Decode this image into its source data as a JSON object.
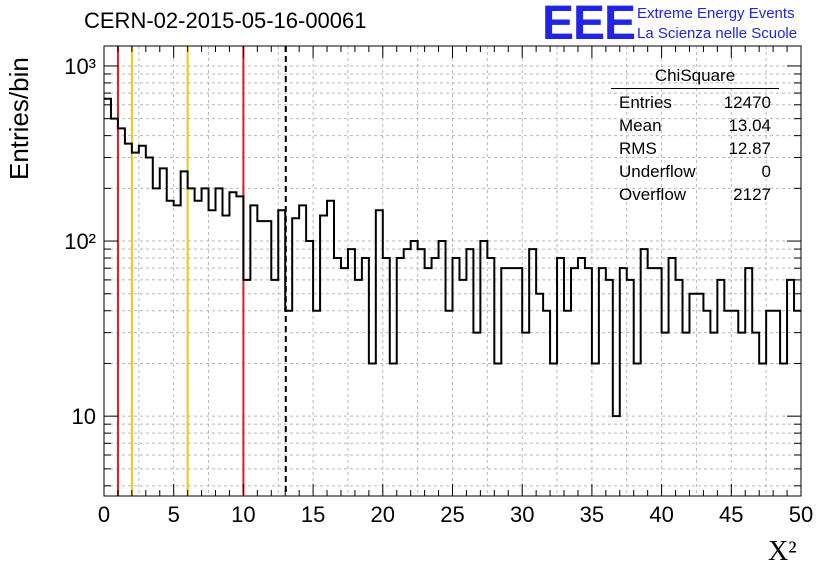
{
  "chart_data": {
    "type": "histogram",
    "title": "CERN-02-2015-05-16-00061",
    "xlabel": "X²",
    "ylabel": "Entries/bin",
    "xlim": [
      0,
      50
    ],
    "ylim": [
      3.5,
      1300
    ],
    "y_scale": "log",
    "grid": true,
    "x_ticks": [
      "0",
      "5",
      "10",
      "15",
      "20",
      "25",
      "30",
      "35",
      "40",
      "45",
      "50"
    ],
    "y_ticks": [
      "10",
      "10²",
      "10³"
    ],
    "bin_width": 0.5,
    "values": [
      650,
      500,
      440,
      360,
      320,
      350,
      300,
      200,
      260,
      170,
      160,
      250,
      200,
      170,
      200,
      150,
      200,
      140,
      190,
      180,
      60,
      160,
      130,
      130,
      60,
      150,
      40,
      135,
      160,
      100,
      40,
      140,
      170,
      80,
      70,
      90,
      60,
      80,
      20,
      150,
      80,
      20,
      80,
      90,
      100,
      90,
      70,
      80,
      100,
      40,
      80,
      60,
      90,
      30,
      100,
      80,
      20,
      70,
      70,
      70,
      30,
      90,
      50,
      40,
      20,
      80,
      40,
      70,
      80,
      70,
      20,
      70,
      60,
      10,
      70,
      60,
      20,
      90,
      70,
      70,
      30,
      80,
      60,
      30,
      50,
      50,
      40,
      30,
      60,
      40,
      40,
      30,
      70,
      30,
      20,
      40,
      40,
      20,
      60,
      40
    ]
  },
  "vertical_lines": [
    {
      "x": 1,
      "color": "#e8191c"
    },
    {
      "x": 2,
      "color": "#f2c315"
    },
    {
      "x": 6,
      "color": "#f2c315"
    },
    {
      "x": 10,
      "color": "#e8191c"
    },
    {
      "x": 13.04,
      "color": "#000000",
      "style": "dashed"
    }
  ],
  "stats_box": {
    "title": "ChiSquare",
    "rows": [
      {
        "label": "Entries",
        "value": "12470"
      },
      {
        "label": "Mean",
        "value": "13.04"
      },
      {
        "label": "RMS",
        "value": "12.87"
      },
      {
        "label": "Underflow",
        "value": "0"
      },
      {
        "label": "Overflow",
        "value": "2127"
      }
    ]
  },
  "logo": {
    "text": "EEE",
    "line1": "Extreme Energy Events",
    "line2": "La Scienza nelle Scuole",
    "color": "#1f24e6"
  }
}
